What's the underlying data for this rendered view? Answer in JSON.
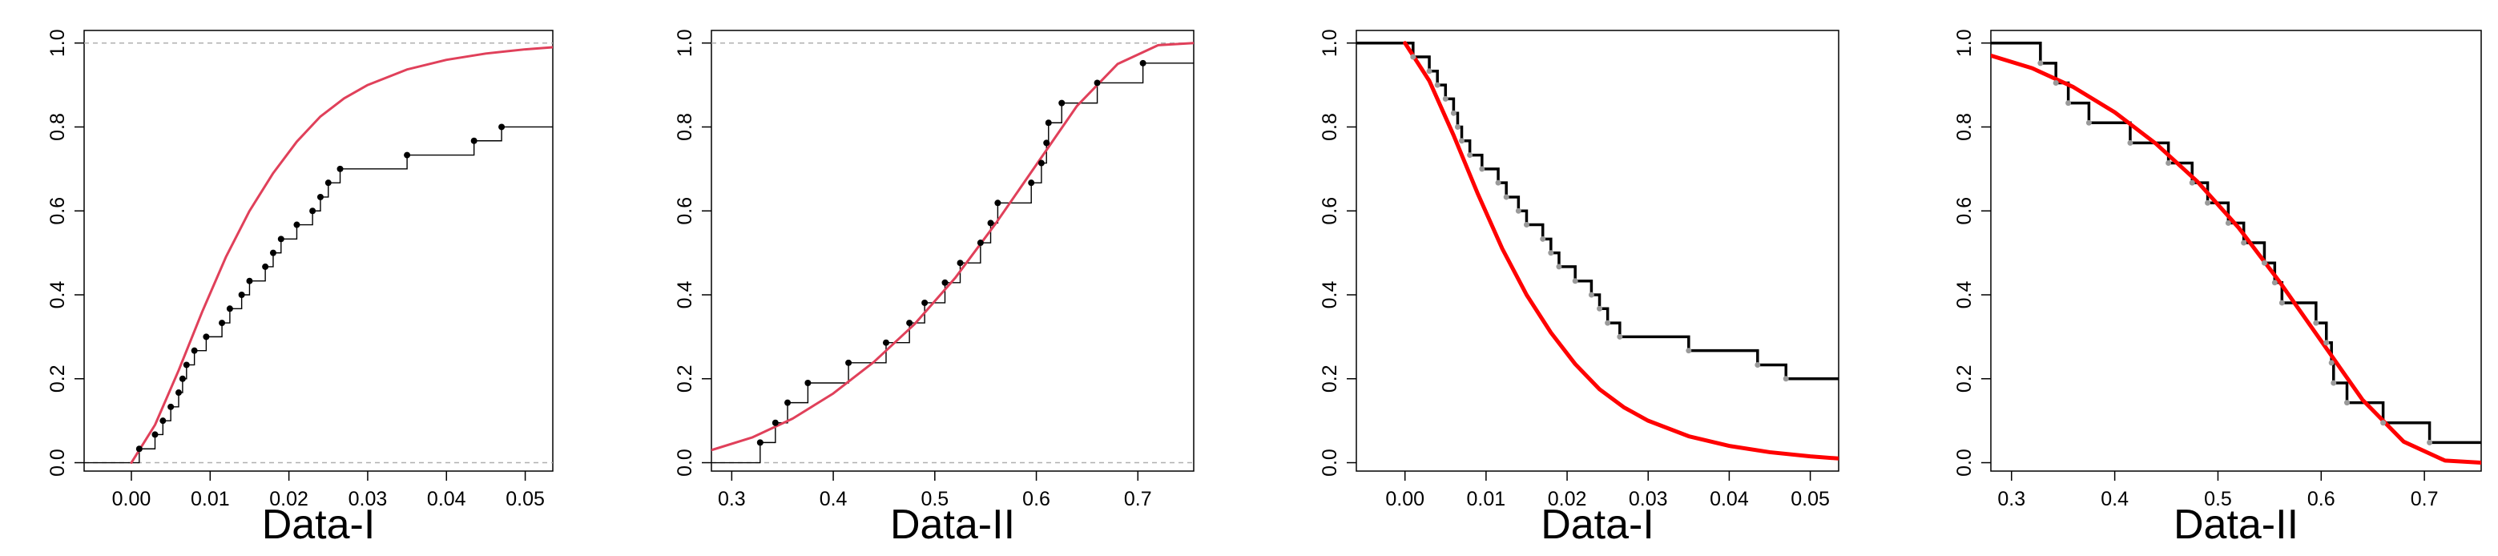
{
  "chart_data": [
    {
      "type": "line",
      "kind": "cdf",
      "title": "",
      "xlabel": "Data-I",
      "ylabel": "",
      "xlim": [
        -0.006,
        0.0535
      ],
      "ylim": [
        -0.02,
        1.03
      ],
      "xticks": [
        0.0,
        0.01,
        0.02,
        0.03,
        0.04,
        0.05
      ],
      "xtick_labels": [
        "0.00",
        "0.01",
        "0.02",
        "0.03",
        "0.04",
        "0.05"
      ],
      "yticks": [
        0.0,
        0.2,
        0.4,
        0.6,
        0.8,
        1.0
      ],
      "ytick_labels": [
        "0.0",
        "0.2",
        "0.4",
        "0.6",
        "0.8",
        "1.0"
      ],
      "reference_lines": [
        0,
        1
      ],
      "grid": false,
      "series": [
        {
          "kind": "ecdf",
          "color": "#000000",
          "x": [
            0.001,
            0.003,
            0.004,
            0.005,
            0.006,
            0.0065,
            0.007,
            0.008,
            0.0095,
            0.0115,
            0.0125,
            0.014,
            0.015,
            0.017,
            0.018,
            0.019,
            0.021,
            0.023,
            0.024,
            0.025,
            0.0265,
            0.035,
            0.0435,
            0.047
          ],
          "y": [
            0.033,
            0.067,
            0.1,
            0.133,
            0.167,
            0.2,
            0.233,
            0.267,
            0.3,
            0.333,
            0.367,
            0.4,
            0.433,
            0.467,
            0.5,
            0.533,
            0.567,
            0.6,
            0.633,
            0.667,
            0.7,
            0.733,
            0.767,
            0.8
          ]
        },
        {
          "kind": "fitted-cdf",
          "color": "#e0405a",
          "x": [
            0.0,
            0.003,
            0.006,
            0.009,
            0.012,
            0.015,
            0.018,
            0.021,
            0.024,
            0.027,
            0.03,
            0.035,
            0.04,
            0.045,
            0.05,
            0.0535
          ],
          "y": [
            0.0,
            0.09,
            0.22,
            0.36,
            0.49,
            0.6,
            0.69,
            0.765,
            0.825,
            0.868,
            0.9,
            0.937,
            0.96,
            0.975,
            0.985,
            0.99
          ]
        }
      ]
    },
    {
      "type": "line",
      "kind": "cdf",
      "title": "",
      "xlabel": "Data-II",
      "ylabel": "",
      "xlim": [
        0.28,
        0.755
      ],
      "ylim": [
        -0.02,
        1.03
      ],
      "xticks": [
        0.3,
        0.4,
        0.5,
        0.6,
        0.7
      ],
      "xtick_labels": [
        "0.3",
        "0.4",
        "0.5",
        "0.6",
        "0.7"
      ],
      "yticks": [
        0.0,
        0.2,
        0.4,
        0.6,
        0.8,
        1.0
      ],
      "ytick_labels": [
        "0.0",
        "0.2",
        "0.4",
        "0.6",
        "0.8",
        "1.0"
      ],
      "reference_lines": [
        0,
        1
      ],
      "grid": false,
      "series": [
        {
          "kind": "ecdf",
          "color": "#000000",
          "x": [
            0.328,
            0.343,
            0.355,
            0.375,
            0.415,
            0.452,
            0.475,
            0.49,
            0.51,
            0.525,
            0.545,
            0.555,
            0.562,
            0.595,
            0.605,
            0.61,
            0.612,
            0.625,
            0.66,
            0.705
          ],
          "y": [
            0.048,
            0.095,
            0.143,
            0.19,
            0.238,
            0.286,
            0.333,
            0.381,
            0.429,
            0.476,
            0.524,
            0.571,
            0.619,
            0.667,
            0.714,
            0.762,
            0.81,
            0.857,
            0.905,
            0.952
          ]
        },
        {
          "kind": "fitted-cdf",
          "color": "#e0405a",
          "x": [
            0.28,
            0.32,
            0.36,
            0.4,
            0.44,
            0.48,
            0.52,
            0.56,
            0.6,
            0.64,
            0.68,
            0.72,
            0.755
          ],
          "y": [
            0.03,
            0.06,
            0.105,
            0.165,
            0.24,
            0.33,
            0.44,
            0.57,
            0.71,
            0.85,
            0.95,
            0.995,
            1.0
          ]
        }
      ]
    },
    {
      "type": "line",
      "kind": "survival",
      "title": "",
      "xlabel": "Data-I",
      "ylabel": "",
      "xlim": [
        -0.006,
        0.0535
      ],
      "ylim": [
        -0.02,
        1.03
      ],
      "xticks": [
        0.0,
        0.01,
        0.02,
        0.03,
        0.04,
        0.05
      ],
      "xtick_labels": [
        "0.00",
        "0.01",
        "0.02",
        "0.03",
        "0.04",
        "0.05"
      ],
      "yticks": [
        0.0,
        0.2,
        0.4,
        0.6,
        0.8,
        1.0
      ],
      "ytick_labels": [
        "0.0",
        "0.2",
        "0.4",
        "0.6",
        "0.8",
        "1.0"
      ],
      "grid": false,
      "series": [
        {
          "kind": "empirical-survival",
          "color": "#000000",
          "x": [
            0.001,
            0.003,
            0.004,
            0.005,
            0.006,
            0.0065,
            0.007,
            0.008,
            0.0095,
            0.0115,
            0.0125,
            0.014,
            0.015,
            0.017,
            0.018,
            0.019,
            0.021,
            0.023,
            0.024,
            0.025,
            0.0265,
            0.035,
            0.0435,
            0.047
          ],
          "y": [
            0.967,
            0.933,
            0.9,
            0.867,
            0.833,
            0.8,
            0.767,
            0.733,
            0.7,
            0.667,
            0.633,
            0.6,
            0.567,
            0.533,
            0.5,
            0.467,
            0.433,
            0.4,
            0.367,
            0.333,
            0.3,
            0.267,
            0.233,
            0.2
          ]
        },
        {
          "kind": "fitted-survival",
          "color": "#ff0000",
          "x": [
            0.0,
            0.003,
            0.006,
            0.009,
            0.012,
            0.015,
            0.018,
            0.021,
            0.024,
            0.027,
            0.03,
            0.035,
            0.04,
            0.045,
            0.05,
            0.0535
          ],
          "y": [
            1.0,
            0.91,
            0.78,
            0.64,
            0.51,
            0.4,
            0.31,
            0.235,
            0.175,
            0.132,
            0.1,
            0.063,
            0.04,
            0.025,
            0.015,
            0.01
          ]
        }
      ]
    },
    {
      "type": "line",
      "kind": "survival",
      "title": "",
      "xlabel": "Data-II",
      "ylabel": "",
      "xlim": [
        0.28,
        0.755
      ],
      "ylim": [
        -0.02,
        1.03
      ],
      "xticks": [
        0.3,
        0.4,
        0.5,
        0.6,
        0.7
      ],
      "xtick_labels": [
        "0.3",
        "0.4",
        "0.5",
        "0.6",
        "0.7"
      ],
      "yticks": [
        0.0,
        0.2,
        0.4,
        0.6,
        0.8,
        1.0
      ],
      "ytick_labels": [
        "0.0",
        "0.2",
        "0.4",
        "0.6",
        "0.8",
        "1.0"
      ],
      "grid": false,
      "series": [
        {
          "kind": "empirical-survival",
          "color": "#000000",
          "x": [
            0.328,
            0.343,
            0.355,
            0.375,
            0.415,
            0.452,
            0.475,
            0.49,
            0.51,
            0.525,
            0.545,
            0.555,
            0.562,
            0.595,
            0.605,
            0.61,
            0.612,
            0.625,
            0.66,
            0.705
          ],
          "y": [
            0.952,
            0.905,
            0.857,
            0.81,
            0.762,
            0.714,
            0.667,
            0.619,
            0.571,
            0.524,
            0.476,
            0.429,
            0.381,
            0.333,
            0.286,
            0.238,
            0.19,
            0.143,
            0.095,
            0.048
          ]
        },
        {
          "kind": "fitted-survival",
          "color": "#ff0000",
          "x": [
            0.28,
            0.32,
            0.36,
            0.4,
            0.44,
            0.48,
            0.52,
            0.56,
            0.6,
            0.64,
            0.68,
            0.72,
            0.755
          ],
          "y": [
            0.97,
            0.94,
            0.895,
            0.835,
            0.76,
            0.67,
            0.56,
            0.43,
            0.29,
            0.15,
            0.05,
            0.005,
            0.0
          ]
        }
      ]
    }
  ]
}
